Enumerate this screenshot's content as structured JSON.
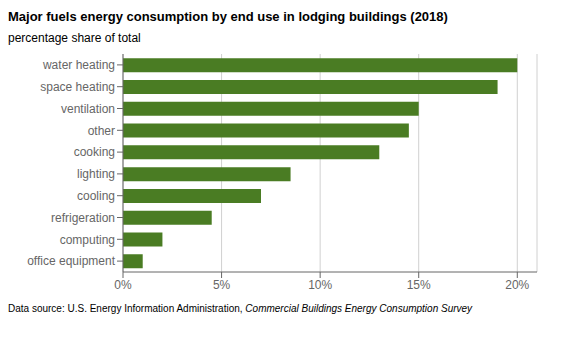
{
  "chart_data": {
    "type": "bar",
    "orientation": "horizontal",
    "title": "Major fuels energy consumption by end use in lodging buildings (2018)",
    "subtitle": "percentage share of total",
    "annotations": [
      "Data source: U.S. Energy Information Administration, ",
      "Commercial Buildings Energy Consumption Survey"
    ],
    "categories": [
      "office equipment",
      "computing",
      "refrigeration",
      "cooling",
      "lighting",
      "cooking",
      "other",
      "ventilation",
      "space heating",
      "water heating"
    ],
    "values": [
      1.0,
      2.0,
      4.5,
      7.0,
      8.5,
      13.0,
      14.5,
      15.0,
      19.0,
      20.0
    ],
    "color": "#4a7c23",
    "xlim": [
      0,
      21
    ],
    "xticks": [
      {
        "value": 0,
        "label": "0%"
      },
      {
        "value": 5,
        "label": "5%"
      },
      {
        "value": 10,
        "label": "10%"
      },
      {
        "value": 15,
        "label": "15%"
      },
      {
        "value": 20,
        "label": "20%"
      }
    ],
    "grid": true
  }
}
